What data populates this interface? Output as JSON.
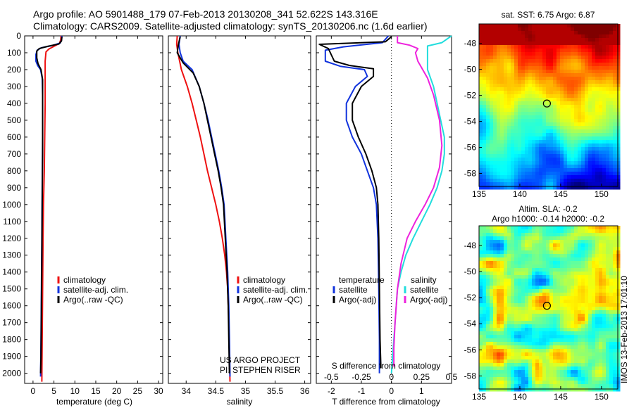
{
  "header": {
    "line1": "Argo profile: AO 5901488_179 07-Feb-2013 20130208_341 52.622S 143.316E",
    "line2": "Climatology: CARS2009. Satellite-adjusted climatology: synTS_20130206.nc (1.6d earlier)"
  },
  "depth_ticks": [
    0,
    100,
    200,
    300,
    400,
    500,
    600,
    700,
    800,
    900,
    1000,
    1100,
    1200,
    1300,
    1400,
    1500,
    1600,
    1700,
    1800,
    1900,
    2000
  ],
  "chart_data": [
    {
      "type": "line",
      "id": "temperature",
      "xlabel": "temperature (deg C)",
      "ylabel": "",
      "xlim": [
        -2,
        31
      ],
      "ylim": [
        2060,
        0
      ],
      "xticks": [
        0,
        5,
        10,
        15,
        20,
        25,
        30
      ],
      "legend": {
        "placement": "bottom-center",
        "entries": [
          "climatology",
          "satellite-adj. clim.",
          "Argo(..raw -QC)"
        ]
      },
      "colors": {
        "climatology": "#ee1111",
        "satellite": "#1133dd",
        "argo": "#000000"
      },
      "series": [
        {
          "name": "climatology",
          "color": "#ee1111",
          "points": [
            [
              6.7,
              0
            ],
            [
              6.6,
              25
            ],
            [
              6.3,
              45
            ],
            [
              5.0,
              62
            ],
            [
              3.8,
              78
            ],
            [
              3.1,
              95
            ],
            [
              2.9,
              150
            ],
            [
              2.9,
              250
            ],
            [
              2.9,
              400
            ],
            [
              2.8,
              600
            ],
            [
              2.7,
              800
            ],
            [
              2.5,
              1000
            ],
            [
              2.4,
              1200
            ],
            [
              2.3,
              1500
            ],
            [
              2.2,
              1800
            ],
            [
              2.1,
              2050
            ]
          ]
        },
        {
          "name": "satellite-adj. clim.",
          "color": "#1133dd",
          "points": [
            [
              6.9,
              0
            ],
            [
              6.8,
              25
            ],
            [
              6.5,
              42
            ],
            [
              4.5,
              58
            ],
            [
              2.0,
              70
            ],
            [
              1.0,
              85
            ],
            [
              0.7,
              110
            ],
            [
              0.7,
              150
            ],
            [
              1.1,
              175
            ],
            [
              1.8,
              200
            ],
            [
              2.2,
              250
            ],
            [
              2.3,
              350
            ],
            [
              2.3,
              600
            ],
            [
              2.2,
              900
            ],
            [
              2.1,
              1200
            ],
            [
              2.0,
              1500
            ],
            [
              1.9,
              1800
            ],
            [
              1.8,
              2020
            ]
          ]
        },
        {
          "name": "Argo(..raw -QC)",
          "color": "#000000",
          "points": [
            [
              6.9,
              5
            ],
            [
              6.8,
              30
            ],
            [
              6.2,
              48
            ],
            [
              3.5,
              62
            ],
            [
              1.5,
              75
            ],
            [
              0.9,
              90
            ],
            [
              0.9,
              130
            ],
            [
              1.2,
              165
            ],
            [
              1.9,
              200
            ],
            [
              2.3,
              260
            ],
            [
              2.3,
              400
            ],
            [
              2.3,
              700
            ],
            [
              2.2,
              1000
            ],
            [
              2.1,
              1300
            ],
            [
              2.0,
              1600
            ],
            [
              1.9,
              1900
            ],
            [
              1.8,
              2000
            ]
          ]
        }
      ]
    },
    {
      "type": "line",
      "id": "salinity",
      "xlabel": "salinity",
      "ylabel": "",
      "xlim": [
        33.7,
        36.1
      ],
      "ylim": [
        2060,
        0
      ],
      "xticks": [
        34,
        34.5,
        35,
        35.5,
        36
      ],
      "xtick_labels": [
        "34",
        "34.5",
        "35",
        "35.5",
        "36"
      ],
      "legend": {
        "placement": "bottom-center",
        "entries": [
          "climatology",
          "satellite-adj. clim.",
          "Argo(..raw -QC)"
        ]
      },
      "annotations": [
        "US ARGO PROJECT",
        "PI: STEPHEN RISER"
      ],
      "series": [
        {
          "name": "climatology",
          "color": "#ee1111",
          "points": [
            [
              33.85,
              0
            ],
            [
              33.84,
              50
            ],
            [
              33.86,
              100
            ],
            [
              33.92,
              200
            ],
            [
              34.02,
              300
            ],
            [
              34.1,
              400
            ],
            [
              34.17,
              500
            ],
            [
              34.24,
              600
            ],
            [
              34.3,
              700
            ],
            [
              34.36,
              800
            ],
            [
              34.43,
              900
            ],
            [
              34.5,
              1000
            ],
            [
              34.56,
              1100
            ],
            [
              34.61,
              1200
            ],
            [
              34.65,
              1300
            ],
            [
              34.68,
              1400
            ],
            [
              34.7,
              1500
            ],
            [
              34.72,
              1700
            ],
            [
              34.73,
              1900
            ],
            [
              34.74,
              2050
            ]
          ]
        },
        {
          "name": "satellite-adj. clim.",
          "color": "#1133dd",
          "points": [
            [
              33.9,
              0
            ],
            [
              33.88,
              50
            ],
            [
              33.9,
              100
            ],
            [
              33.95,
              150
            ],
            [
              34.1,
              200
            ],
            [
              34.22,
              300
            ],
            [
              34.3,
              400
            ],
            [
              34.37,
              500
            ],
            [
              34.43,
              600
            ],
            [
              34.49,
              700
            ],
            [
              34.55,
              800
            ],
            [
              34.6,
              900
            ],
            [
              34.64,
              1000
            ],
            [
              34.67,
              1200
            ],
            [
              34.7,
              1400
            ],
            [
              34.72,
              1600
            ],
            [
              34.73,
              1800
            ],
            [
              34.74,
              2020
            ]
          ]
        },
        {
          "name": "Argo(..raw -QC)",
          "color": "#000000",
          "points": [
            [
              33.9,
              5
            ],
            [
              33.87,
              50
            ],
            [
              33.85,
              100
            ],
            [
              33.95,
              160
            ],
            [
              34.12,
              220
            ],
            [
              34.22,
              300
            ],
            [
              34.3,
              400
            ],
            [
              34.36,
              500
            ],
            [
              34.42,
              600
            ],
            [
              34.48,
              700
            ],
            [
              34.54,
              800
            ],
            [
              34.59,
              900
            ],
            [
              34.63,
              1000
            ],
            [
              34.66,
              1200
            ],
            [
              34.69,
              1400
            ],
            [
              34.71,
              1600
            ],
            [
              34.72,
              1800
            ],
            [
              34.73,
              2000
            ]
          ]
        }
      ]
    },
    {
      "type": "line",
      "id": "difference",
      "xlabel": "T difference from climatology",
      "x2label": "S difference from climatology",
      "xlim": [
        -2.5,
        2.0
      ],
      "ylim": [
        2060,
        0
      ],
      "xticks": [
        -2,
        -1,
        0,
        1
      ],
      "xtick_labels": [
        "-2",
        "-1",
        "0",
        "1"
      ],
      "s_axis": {
        "ticks": [
          -0.5,
          -0.25,
          0,
          0.25,
          0.5
        ],
        "labels": [
          "-0.5",
          "-0.25",
          "0",
          "0.25",
          "0.5"
        ]
      },
      "legend": {
        "placement": "bottom",
        "groups": [
          {
            "title": "temperature",
            "entries": [
              "satellite",
              "Argo(-adj)"
            ]
          },
          {
            "title": "salinity",
            "entries": [
              "satellite",
              "Argo(-adj)"
            ]
          }
        ]
      },
      "series": [
        {
          "name": "satellite",
          "group": "temperature",
          "color": "#1133dd",
          "points": [
            [
              -0.1,
              0
            ],
            [
              -0.3,
              40
            ],
            [
              -1.6,
              65
            ],
            [
              -2.2,
              85
            ],
            [
              -2.2,
              150
            ],
            [
              -1.7,
              180
            ],
            [
              -0.9,
              200
            ],
            [
              -0.8,
              240
            ],
            [
              -1.2,
              300
            ],
            [
              -1.5,
              400
            ],
            [
              -1.5,
              500
            ],
            [
              -1.3,
              600
            ],
            [
              -1.0,
              700
            ],
            [
              -0.8,
              800
            ],
            [
              -0.6,
              900
            ],
            [
              -0.5,
              1000
            ],
            [
              -0.45,
              1200
            ],
            [
              -0.42,
              1500
            ],
            [
              -0.4,
              1800
            ],
            [
              -0.4,
              2000
            ]
          ]
        },
        {
          "name": "Argo(-adj)",
          "group": "temperature",
          "color": "#000000",
          "points": [
            [
              0.0,
              5
            ],
            [
              -0.2,
              35
            ],
            [
              -2.4,
              50
            ],
            [
              -2.1,
              75
            ],
            [
              -1.9,
              150
            ],
            [
              -1.4,
              175
            ],
            [
              -0.6,
              195
            ],
            [
              -0.6,
              240
            ],
            [
              -1.0,
              300
            ],
            [
              -1.3,
              400
            ],
            [
              -1.3,
              500
            ],
            [
              -1.1,
              600
            ],
            [
              -0.85,
              700
            ],
            [
              -0.65,
              800
            ],
            [
              -0.5,
              900
            ],
            [
              -0.45,
              1000
            ],
            [
              -0.42,
              1200
            ],
            [
              -0.4,
              1500
            ],
            [
              -0.38,
              1800
            ],
            [
              -0.35,
              1970
            ]
          ]
        },
        {
          "name": "satellite",
          "group": "salinity",
          "color": "#22dddd",
          "points": [
            [
              0.5,
              0
            ],
            [
              0.42,
              40
            ],
            [
              0.3,
              60
            ],
            [
              0.3,
              100
            ],
            [
              0.3,
              200
            ],
            [
              0.35,
              300
            ],
            [
              0.38,
              400
            ],
            [
              0.41,
              500
            ],
            [
              0.44,
              600
            ],
            [
              0.44,
              700
            ],
            [
              0.42,
              800
            ],
            [
              0.38,
              900
            ],
            [
              0.32,
              1000
            ],
            [
              0.25,
              1100
            ],
            [
              0.18,
              1200
            ],
            [
              0.12,
              1300
            ],
            [
              0.08,
              1400
            ],
            [
              0.05,
              1500
            ],
            [
              0.03,
              1700
            ],
            [
              0.01,
              1900
            ],
            [
              0.0,
              2000
            ]
          ]
        },
        {
          "name": "Argo(-adj)",
          "group": "salinity",
          "color": "#ee22dd",
          "points": [
            [
              0.05,
              0
            ],
            [
              0.05,
              40
            ],
            [
              0.15,
              55
            ],
            [
              0.22,
              75
            ],
            [
              0.2,
              100
            ],
            [
              0.22,
              150
            ],
            [
              0.3,
              250
            ],
            [
              0.35,
              350
            ],
            [
              0.4,
              500
            ],
            [
              0.42,
              650
            ],
            [
              0.4,
              780
            ],
            [
              0.35,
              900
            ],
            [
              0.28,
              1000
            ],
            [
              0.2,
              1100
            ],
            [
              0.13,
              1200
            ],
            [
              0.08,
              1350
            ],
            [
              0.05,
              1500
            ],
            [
              0.03,
              1700
            ],
            [
              0.02,
              1850
            ],
            [
              0.02,
              1960
            ]
          ]
        }
      ]
    },
    {
      "type": "heatmap",
      "id": "sst_map",
      "title": "sat. SST: 6.75  Argo: 6.87",
      "xlim": [
        135,
        152
      ],
      "ylim": [
        -59,
        -46.5
      ],
      "xticks": [
        135,
        140,
        145,
        150
      ],
      "yticks": [
        -48,
        -50,
        -52,
        -54,
        -56,
        -58
      ],
      "marker": {
        "lon": 143.316,
        "lat": -52.622
      }
    },
    {
      "type": "heatmap",
      "id": "sla_map",
      "title": "Altim. SLA: -0.2",
      "subtitle": "Argo h1000: -0.14  h2000: -0.2",
      "xlim": [
        135,
        152
      ],
      "ylim": [
        -59,
        -46.5
      ],
      "xticks": [
        135,
        140,
        145,
        150
      ],
      "yticks": [
        -48,
        -50,
        -52,
        -54,
        -56,
        -58
      ],
      "marker": {
        "lon": 143.316,
        "lat": -52.622
      },
      "side_label": "IMOS 13-Feb-2013 17:01:10"
    }
  ]
}
